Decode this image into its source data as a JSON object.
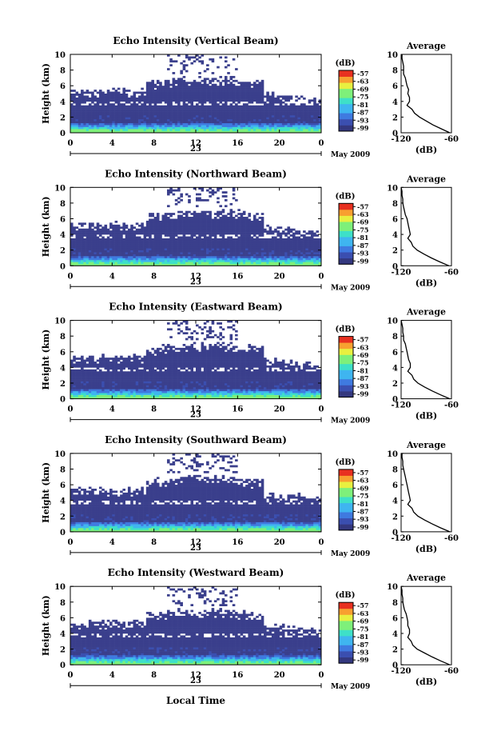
{
  "date_label": "May 2009",
  "day_label": "23",
  "xlabel_bottom": "Local Time",
  "height_label": "Height (km)",
  "colorbar_unit": "(dB)",
  "average_title": "Average",
  "average_xlabel": "(dB)",
  "colorbar_ticks": [
    "-57",
    "-63",
    "-69",
    "-75",
    "-81",
    "-87",
    "-93",
    "-99"
  ],
  "colors": {
    "background_echo": "#3a3f8c",
    "colormap": [
      "#34387f",
      "#3b4fb0",
      "#3f7ae0",
      "#3fb5f0",
      "#3ee0c8",
      "#7ef07a",
      "#e8f040",
      "#f8a030",
      "#e83020"
    ]
  },
  "chart_data": [
    {
      "type": "heatmap",
      "title": "Echo Intensity (Vertical Beam)",
      "xlabel": "Local Time",
      "ylabel": "Height (km)",
      "x_ticks": [
        "0",
        "4",
        "8",
        "12",
        "16",
        "20",
        "0"
      ],
      "y_ticks": [
        "0",
        "2",
        "4",
        "6",
        "8",
        "10"
      ],
      "xlim": [
        0,
        24
      ],
      "ylim": [
        0,
        10
      ],
      "clim": [
        -99,
        -57
      ],
      "profile": {
        "title": "Average",
        "xlabel": "(dB)",
        "x_ticks": [
          "-120",
          "-60"
        ],
        "xlim": [
          -120,
          -60
        ],
        "height": [
          0.0,
          0.5,
          1.0,
          1.5,
          2.0,
          2.5,
          3.0,
          3.5,
          4.0,
          4.5,
          5.0,
          5.5,
          6.0,
          6.5,
          7.0,
          7.5,
          8.0,
          8.5,
          9.0,
          9.5,
          10.0
        ],
        "db": [
          -62,
          -72,
          -82,
          -90,
          -98,
          -104,
          -107,
          -113,
          -110,
          -110,
          -112,
          -111,
          -113,
          -114,
          -115,
          -117,
          -117,
          -117,
          -118,
          -119,
          -119
        ]
      }
    },
    {
      "type": "heatmap",
      "title": "Echo Intensity (Northward Beam)",
      "xlabel": "Local Time",
      "ylabel": "Height (km)",
      "x_ticks": [
        "0",
        "4",
        "8",
        "12",
        "16",
        "20",
        "0"
      ],
      "y_ticks": [
        "0",
        "2",
        "4",
        "6",
        "8",
        "10"
      ],
      "xlim": [
        0,
        24
      ],
      "ylim": [
        0,
        10
      ],
      "clim": [
        -99,
        -57
      ],
      "profile": {
        "title": "Average",
        "xlabel": "(dB)",
        "x_ticks": [
          "-120",
          "-60"
        ],
        "xlim": [
          -120,
          -60
        ],
        "height": [
          0.0,
          0.5,
          1.0,
          1.5,
          2.0,
          2.5,
          3.0,
          3.5,
          4.0,
          4.5,
          5.0,
          5.5,
          6.0,
          6.5,
          7.0,
          7.5,
          8.0,
          8.5,
          9.0,
          9.5,
          10.0
        ],
        "db": [
          -63,
          -74,
          -84,
          -93,
          -101,
          -106,
          -108,
          -112,
          -109,
          -110,
          -111,
          -112,
          -113,
          -115,
          -116,
          -117,
          -118,
          -118,
          -119,
          -119,
          -120
        ]
      }
    },
    {
      "type": "heatmap",
      "title": "Echo Intensity (Eastward Beam)",
      "xlabel": "Local Time",
      "ylabel": "Height (km)",
      "x_ticks": [
        "0",
        "4",
        "8",
        "12",
        "16",
        "20",
        "0"
      ],
      "y_ticks": [
        "0",
        "2",
        "4",
        "6",
        "8",
        "10"
      ],
      "xlim": [
        0,
        24
      ],
      "ylim": [
        0,
        10
      ],
      "clim": [
        -99,
        -57
      ],
      "profile": {
        "title": "Average",
        "xlabel": "(dB)",
        "x_ticks": [
          "-120",
          "-60"
        ],
        "xlim": [
          -120,
          -60
        ],
        "height": [
          0.0,
          0.5,
          1.0,
          1.5,
          2.0,
          2.5,
          3.0,
          3.5,
          4.0,
          4.5,
          5.0,
          5.5,
          6.0,
          6.5,
          7.0,
          7.5,
          8.0,
          8.5,
          9.0,
          9.5,
          10.0
        ],
        "db": [
          -62,
          -73,
          -83,
          -92,
          -100,
          -105,
          -107,
          -112,
          -109,
          -109,
          -111,
          -112,
          -113,
          -114,
          -115,
          -117,
          -117,
          -118,
          -118,
          -119,
          -120
        ]
      }
    },
    {
      "type": "heatmap",
      "title": "Echo Intensity (Southward Beam)",
      "xlabel": "Local Time",
      "ylabel": "Height (km)",
      "x_ticks": [
        "0",
        "4",
        "8",
        "12",
        "16",
        "20",
        "0"
      ],
      "y_ticks": [
        "0",
        "2",
        "4",
        "6",
        "8",
        "10"
      ],
      "xlim": [
        0,
        24
      ],
      "ylim": [
        0,
        10
      ],
      "clim": [
        -99,
        -57
      ],
      "profile": {
        "title": "Average",
        "xlabel": "(dB)",
        "x_ticks": [
          "-120",
          "-60"
        ],
        "xlim": [
          -120,
          -60
        ],
        "height": [
          0.0,
          0.5,
          1.0,
          1.5,
          2.0,
          2.5,
          3.0,
          3.5,
          4.0,
          4.5,
          5.0,
          5.5,
          6.0,
          6.5,
          7.0,
          7.5,
          8.0,
          8.5,
          9.0,
          9.5,
          10.0
        ],
        "db": [
          -62,
          -73,
          -83,
          -92,
          -100,
          -105,
          -107,
          -112,
          -109,
          -110,
          -111,
          -112,
          -113,
          -114,
          -115,
          -116,
          -117,
          -118,
          -118,
          -119,
          -119
        ]
      }
    },
    {
      "type": "heatmap",
      "title": "Echo Intensity (Westward Beam)",
      "xlabel": "Local Time",
      "ylabel": "Height (km)",
      "x_ticks": [
        "0",
        "4",
        "8",
        "12",
        "16",
        "20",
        "0"
      ],
      "y_ticks": [
        "0",
        "2",
        "4",
        "6",
        "8",
        "10"
      ],
      "xlim": [
        0,
        24
      ],
      "ylim": [
        0,
        10
      ],
      "clim": [
        -99,
        -57
      ],
      "profile": {
        "title": "Average",
        "xlabel": "(dB)",
        "x_ticks": [
          "-120",
          "-60"
        ],
        "xlim": [
          -120,
          -60
        ],
        "height": [
          0.0,
          0.5,
          1.0,
          1.5,
          2.0,
          2.5,
          3.0,
          3.5,
          4.0,
          4.5,
          5.0,
          5.5,
          6.0,
          6.5,
          7.0,
          7.5,
          8.0,
          8.5,
          9.0,
          9.5,
          10.0
        ],
        "db": [
          -62,
          -73,
          -83,
          -92,
          -101,
          -106,
          -108,
          -112,
          -110,
          -110,
          -112,
          -112,
          -113,
          -114,
          -116,
          -117,
          -118,
          -118,
          -119,
          -119,
          -120
        ]
      }
    }
  ]
}
